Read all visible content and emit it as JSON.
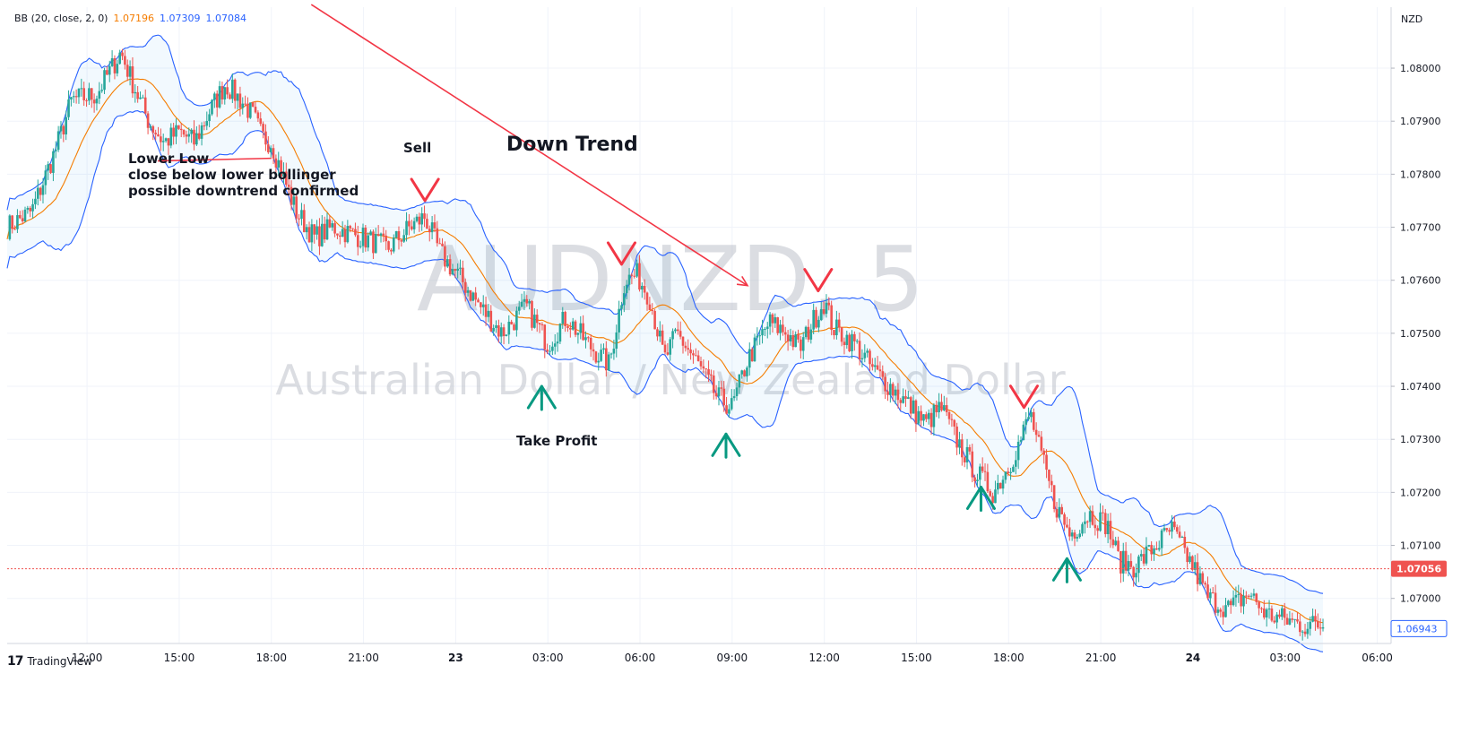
{
  "indicator": {
    "label": "BB (20, close, 2, 0)",
    "basis": "1.07196",
    "upper": "1.07309",
    "lower": "1.07084",
    "basis_color": "#f57c00",
    "band_color": "#2962ff"
  },
  "watermark": {
    "symbol": "AUDNZD, 5",
    "description": "Australian Dollar / New Zealand Dollar"
  },
  "brand": {
    "logo": "17",
    "name": "TradingView"
  },
  "colors": {
    "up": "#26a69a",
    "down": "#ef5350",
    "annotation_red": "#f23645",
    "annotation_green": "#089981"
  },
  "chart_data": {
    "type": "candlestick",
    "currency": "NZD",
    "y_ticks": [
      "1.08000",
      "1.07900",
      "1.07800",
      "1.07700",
      "1.07600",
      "1.07500",
      "1.07400",
      "1.07300",
      "1.07200",
      "1.07100",
      "1.07000"
    ],
    "ylim": [
      1.06915,
      1.08115
    ],
    "x_ticks": [
      {
        "label": "12:00",
        "hour": 12,
        "bold": false
      },
      {
        "label": "15:00",
        "hour": 15,
        "bold": false
      },
      {
        "label": "18:00",
        "hour": 18,
        "bold": false
      },
      {
        "label": "21:00",
        "hour": 21,
        "bold": false
      },
      {
        "label": "23",
        "hour": 24,
        "bold": true
      },
      {
        "label": "03:00",
        "hour": 27,
        "bold": false
      },
      {
        "label": "06:00",
        "hour": 30,
        "bold": false
      },
      {
        "label": "09:00",
        "hour": 33,
        "bold": false
      },
      {
        "label": "12:00",
        "hour": 36,
        "bold": false
      },
      {
        "label": "15:00",
        "hour": 39,
        "bold": false
      },
      {
        "label": "18:00",
        "hour": 42,
        "bold": false
      },
      {
        "label": "21:00",
        "hour": 45,
        "bold": false
      },
      {
        "label": "24",
        "hour": 48,
        "bold": true
      },
      {
        "label": "03:00",
        "hour": 51,
        "bold": false
      },
      {
        "label": "06:00",
        "hour": 54,
        "bold": false
      }
    ],
    "xlim_hours": [
      9.4,
      54.45
    ],
    "last_price": "1.07056",
    "last_price_value": 1.07056,
    "lower_band_value_label": "1.06943",
    "lower_band_value": 1.06943,
    "price_path": [
      [
        9.4,
        1.077
      ],
      [
        10.2,
        1.0773
      ],
      [
        11.0,
        1.0785
      ],
      [
        11.5,
        1.0794
      ],
      [
        12.3,
        1.0795
      ],
      [
        12.8,
        1.08
      ],
      [
        13.1,
        1.0803
      ],
      [
        13.5,
        1.0797
      ],
      [
        14.0,
        1.079
      ],
      [
        14.5,
        1.0786
      ],
      [
        15.0,
        1.0788
      ],
      [
        15.5,
        1.0786
      ],
      [
        16.0,
        1.0792
      ],
      [
        16.5,
        1.0797
      ],
      [
        17.0,
        1.0794
      ],
      [
        17.4,
        1.0791
      ],
      [
        17.7,
        1.0787
      ],
      [
        18.0,
        1.0786
      ],
      [
        18.3,
        1.0781
      ],
      [
        18.8,
        1.0773
      ],
      [
        19.4,
        1.0768
      ],
      [
        20.0,
        1.077
      ],
      [
        21.0,
        1.0768
      ],
      [
        21.8,
        1.0766
      ],
      [
        22.5,
        1.077
      ],
      [
        23.0,
        1.0772
      ],
      [
        23.5,
        1.0765
      ],
      [
        24.2,
        1.076
      ],
      [
        24.8,
        1.0755
      ],
      [
        25.5,
        1.075
      ],
      [
        26.3,
        1.0755
      ],
      [
        27.0,
        1.0748
      ],
      [
        27.6,
        1.0753
      ],
      [
        28.3,
        1.0748
      ],
      [
        29.0,
        1.0744
      ],
      [
        29.5,
        1.076
      ],
      [
        29.9,
        1.0761
      ],
      [
        30.3,
        1.0757
      ],
      [
        30.8,
        1.0745
      ],
      [
        31.2,
        1.075
      ],
      [
        31.8,
        1.0745
      ],
      [
        32.5,
        1.0738
      ],
      [
        33.0,
        1.0736
      ],
      [
        33.5,
        1.0745
      ],
      [
        34.2,
        1.0752
      ],
      [
        34.8,
        1.075
      ],
      [
        35.2,
        1.0747
      ],
      [
        35.6,
        1.0752
      ],
      [
        36.0,
        1.0756
      ],
      [
        36.3,
        1.0751
      ],
      [
        37.0,
        1.0748
      ],
      [
        37.6,
        1.0743
      ],
      [
        38.5,
        1.0738
      ],
      [
        39.3,
        1.0733
      ],
      [
        39.8,
        1.0736
      ],
      [
        40.3,
        1.073
      ],
      [
        40.9,
        1.0724
      ],
      [
        41.5,
        1.072
      ],
      [
        42.0,
        1.0725
      ],
      [
        42.4,
        1.073
      ],
      [
        42.7,
        1.0735
      ],
      [
        43.0,
        1.0728
      ],
      [
        43.5,
        1.0718
      ],
      [
        44.0,
        1.0712
      ],
      [
        44.6,
        1.0716
      ],
      [
        45.2,
        1.0714
      ],
      [
        45.6,
        1.0707
      ],
      [
        46.1,
        1.0706
      ],
      [
        46.8,
        1.071
      ],
      [
        47.3,
        1.0713
      ],
      [
        48.0,
        1.0706
      ],
      [
        48.5,
        1.07
      ],
      [
        49.2,
        1.0698
      ],
      [
        49.8,
        1.0701
      ],
      [
        50.4,
        1.0697
      ],
      [
        51.0,
        1.0696
      ],
      [
        51.6,
        1.0695
      ],
      [
        52.3,
        1.0695
      ]
    ],
    "annotations": {
      "title": "Down Trend",
      "sell_label": "Sell",
      "take_profit_label": "Take Profit",
      "note_lines": [
        "Lower Low",
        "close below lower bollinger",
        "possible downtrend confirmed"
      ],
      "trend_line": {
        "from": [
          19.3,
          1.0812
        ],
        "to": [
          33.5,
          1.0759
        ]
      },
      "lower_low_line": {
        "from": [
          14.3,
          1.07825
        ],
        "to": [
          18.0,
          1.0783
        ]
      },
      "sell_arrows": [
        [
          23.0,
          1.0775
        ],
        [
          29.4,
          1.0763
        ],
        [
          35.8,
          1.0758
        ],
        [
          42.5,
          1.0736
        ]
      ],
      "profit_arrows": [
        [
          26.8,
          1.074
        ],
        [
          32.8,
          1.0731
        ],
        [
          41.1,
          1.0721
        ],
        [
          43.9,
          1.07075
        ]
      ]
    }
  }
}
